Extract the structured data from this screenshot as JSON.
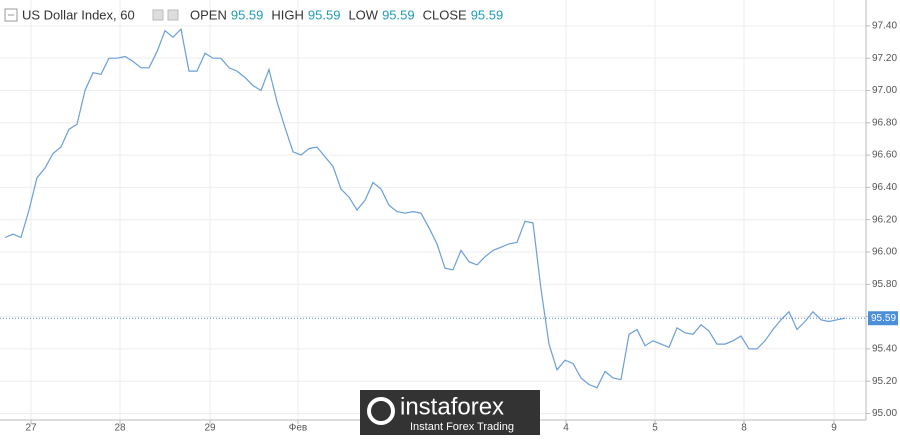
{
  "chart_data": {
    "type": "line",
    "title": "US Dollar Index, 60",
    "ohlc": [
      {
        "label": "OPEN",
        "value": 95.59
      },
      {
        "label": "HIGH",
        "value": 95.59
      },
      {
        "label": "LOW",
        "value": 95.59
      },
      {
        "label": "CLOSE",
        "value": 95.59
      }
    ],
    "last_price": 95.59,
    "color": "#6a9fd6",
    "values": [
      96.09,
      96.11,
      96.09,
      96.26,
      96.46,
      96.52,
      96.61,
      96.65,
      96.76,
      96.79,
      97.0,
      97.11,
      97.1,
      97.2,
      97.2,
      97.21,
      97.18,
      97.14,
      97.14,
      97.24,
      97.37,
      97.33,
      97.38,
      97.12,
      97.12,
      97.23,
      97.2,
      97.2,
      97.14,
      97.12,
      97.08,
      97.03,
      97.0,
      97.13,
      96.93,
      96.77,
      96.62,
      96.6,
      96.64,
      96.65,
      96.59,
      96.53,
      96.39,
      96.34,
      96.26,
      96.32,
      96.43,
      96.39,
      96.29,
      96.25,
      96.24,
      96.25,
      96.24,
      96.15,
      96.05,
      95.9,
      95.89,
      96.01,
      95.94,
      95.92,
      95.97,
      96.01,
      96.03,
      96.05,
      96.06,
      96.19,
      96.18,
      95.77,
      95.43,
      95.27,
      95.33,
      95.31,
      95.22,
      95.18,
      95.16,
      95.26,
      95.22,
      95.21,
      95.49,
      95.52,
      95.42,
      95.45,
      95.43,
      95.41,
      95.53,
      95.5,
      95.49,
      95.55,
      95.51,
      95.43,
      95.43,
      95.45,
      95.48,
      95.4,
      95.4,
      95.45,
      95.52,
      95.58,
      95.63,
      95.52,
      95.57,
      95.63,
      95.58,
      95.57,
      95.58,
      95.59
    ],
    "xlim": [
      -0.625,
      107.625
    ],
    "xticks": [
      {
        "value": 3.25,
        "label": "27"
      },
      {
        "value": 14.375,
        "label": "28"
      },
      {
        "value": 25.625,
        "label": "29"
      },
      {
        "value": 36.625,
        "label": "Фев"
      },
      {
        "value": 70.125,
        "label": "4"
      },
      {
        "value": 81.25,
        "label": "5"
      },
      {
        "value": 92.375,
        "label": "8"
      },
      {
        "value": 103.625,
        "label": "9"
      }
    ],
    "ylim": [
      94.96,
      97.56
    ],
    "yticks": [
      {
        "value": 95,
        "label": "95.00"
      },
      {
        "value": 95.2,
        "label": "95.20"
      },
      {
        "value": 95.4,
        "label": "95.40"
      },
      {
        "value": 95.6,
        "label": "95.60"
      },
      {
        "value": 95.8,
        "label": "95.80"
      },
      {
        "value": 96,
        "label": "96.00"
      },
      {
        "value": 96.2,
        "label": "96.20"
      },
      {
        "value": 96.4,
        "label": "96.40"
      },
      {
        "value": 96.6,
        "label": "96.60"
      },
      {
        "value": 96.8,
        "label": "96.80"
      },
      {
        "value": 97,
        "label": "97.00"
      },
      {
        "value": 97.2,
        "label": "97.20"
      },
      {
        "value": 97.4,
        "label": "97.40"
      }
    ],
    "grid": true,
    "watermark": {
      "brand": "instaforex",
      "tagline": "Instant Forex Trading"
    }
  }
}
